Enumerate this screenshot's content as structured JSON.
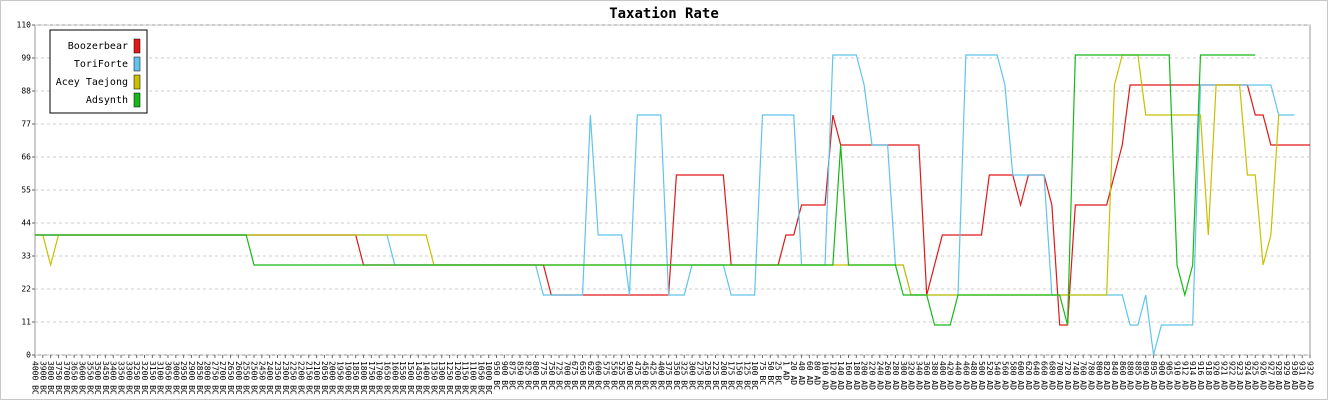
{
  "chart_data": {
    "type": "line",
    "title": "Taxation Rate",
    "categories": [
      "4000 BC",
      "3900 BC",
      "3800 BC",
      "3750 BC",
      "3700 BC",
      "3650 BC",
      "3600 BC",
      "3550 BC",
      "3500 BC",
      "3450 BC",
      "3400 BC",
      "3350 BC",
      "3300 BC",
      "3250 BC",
      "3200 BC",
      "3150 BC",
      "3100 BC",
      "3050 BC",
      "3000 BC",
      "2950 BC",
      "2900 BC",
      "2850 BC",
      "2800 BC",
      "2750 BC",
      "2700 BC",
      "2650 BC",
      "2600 BC",
      "2550 BC",
      "2500 BC",
      "2450 BC",
      "2400 BC",
      "2350 BC",
      "2300 BC",
      "2250 BC",
      "2200 BC",
      "2150 BC",
      "2100 BC",
      "2050 BC",
      "2000 BC",
      "1950 BC",
      "1900 BC",
      "1850 BC",
      "1800 BC",
      "1750 BC",
      "1700 BC",
      "1650 BC",
      "1600 BC",
      "1550 BC",
      "1500 BC",
      "1450 BC",
      "1400 BC",
      "1350 BC",
      "1300 BC",
      "1250 BC",
      "1200 BC",
      "1150 BC",
      "1100 BC",
      "1050 BC",
      "1000 BC",
      "950 BC",
      "900 BC",
      "875 BC",
      "850 BC",
      "825 BC",
      "800 BC",
      "775 BC",
      "750 BC",
      "725 BC",
      "700 BC",
      "675 BC",
      "650 BC",
      "625 BC",
      "600 BC",
      "575 BC",
      "550 BC",
      "525 BC",
      "500 BC",
      "475 BC",
      "450 BC",
      "425 BC",
      "400 BC",
      "375 BC",
      "350 BC",
      "325 BC",
      "300 BC",
      "275 BC",
      "250 BC",
      "225 BC",
      "200 BC",
      "175 BC",
      "150 BC",
      "125 BC",
      "100 BC",
      "75 BC",
      "50 BC",
      "25 BC",
      "1 AD",
      "20 AD",
      "40 AD",
      "60 AD",
      "80 AD",
      "100 AD",
      "120 AD",
      "140 AD",
      "160 AD",
      "180 AD",
      "200 AD",
      "220 AD",
      "240 AD",
      "260 AD",
      "280 AD",
      "300 AD",
      "320 AD",
      "340 AD",
      "360 AD",
      "380 AD",
      "400 AD",
      "420 AD",
      "440 AD",
      "460 AD",
      "480 AD",
      "500 AD",
      "520 AD",
      "540 AD",
      "560 AD",
      "580 AD",
      "600 AD",
      "620 AD",
      "640 AD",
      "660 AD",
      "680 AD",
      "700 AD",
      "720 AD",
      "740 AD",
      "760 AD",
      "780 AD",
      "800 AD",
      "820 AD",
      "840 AD",
      "860 AD",
      "880 AD",
      "885 AD",
      "890 AD",
      "895 AD",
      "900 AD",
      "905 AD",
      "910 AD",
      "912 AD",
      "914 AD",
      "916 AD",
      "918 AD",
      "920 AD",
      "921 AD",
      "922 AD",
      "923 AD",
      "924 AD",
      "925 AD",
      "926 AD",
      "927 AD",
      "928 AD",
      "929 AD",
      "930 AD",
      "931 AD",
      "932 AD"
    ],
    "series": [
      {
        "name": "Boozerbear",
        "color": "#e01818",
        "values": [
          40,
          40,
          40,
          40,
          40,
          40,
          40,
          40,
          40,
          40,
          40,
          40,
          40,
          40,
          40,
          40,
          40,
          40,
          40,
          40,
          40,
          40,
          40,
          40,
          40,
          40,
          40,
          40,
          40,
          40,
          40,
          40,
          40,
          40,
          40,
          40,
          40,
          40,
          40,
          40,
          40,
          40,
          30,
          30,
          30,
          30,
          30,
          30,
          30,
          30,
          30,
          30,
          30,
          30,
          30,
          30,
          30,
          30,
          30,
          30,
          30,
          30,
          30,
          30,
          30,
          30,
          20,
          20,
          20,
          20,
          20,
          20,
          20,
          20,
          20,
          20,
          20,
          20,
          20,
          20,
          20,
          20,
          60,
          60,
          60,
          60,
          60,
          60,
          60,
          30,
          30,
          30,
          30,
          30,
          30,
          30,
          40,
          40,
          50,
          50,
          50,
          50,
          80,
          70,
          70,
          70,
          70,
          70,
          70,
          70,
          70,
          70,
          70,
          70,
          20,
          30,
          40,
          40,
          40,
          40,
          40,
          40,
          60,
          60,
          60,
          60,
          50,
          60,
          60,
          60,
          50,
          10,
          10,
          50,
          50,
          50,
          50,
          50,
          60,
          70,
          90,
          90,
          90,
          90,
          90,
          90,
          90,
          90,
          90,
          90,
          90,
          90,
          90,
          90,
          90,
          90,
          80,
          80,
          70,
          70,
          70,
          70,
          70,
          70
        ]
      },
      {
        "name": "ToriForte",
        "color": "#60c4ec",
        "values": [
          40,
          40,
          40,
          40,
          40,
          40,
          40,
          40,
          40,
          40,
          40,
          40,
          40,
          40,
          40,
          40,
          40,
          40,
          40,
          40,
          40,
          40,
          40,
          40,
          40,
          40,
          40,
          40,
          40,
          40,
          40,
          40,
          40,
          40,
          40,
          40,
          40,
          40,
          40,
          40,
          40,
          40,
          40,
          40,
          40,
          40,
          30,
          30,
          30,
          30,
          30,
          30,
          30,
          30,
          30,
          30,
          30,
          30,
          30,
          30,
          30,
          30,
          30,
          30,
          30,
          20,
          20,
          20,
          20,
          20,
          20,
          80,
          40,
          40,
          40,
          40,
          20,
          80,
          80,
          80,
          80,
          20,
          20,
          20,
          30,
          30,
          30,
          30,
          30,
          20,
          20,
          20,
          20,
          80,
          80,
          80,
          80,
          80,
          30,
          30,
          30,
          30,
          100,
          100,
          100,
          100,
          90,
          70,
          70,
          70,
          30,
          30,
          20,
          20,
          20,
          20,
          20,
          20,
          20,
          100,
          100,
          100,
          100,
          100,
          90,
          60,
          60,
          60,
          60,
          60,
          20,
          20,
          20,
          20,
          20,
          20,
          20,
          20,
          20,
          20,
          10,
          10,
          20,
          0,
          10,
          10,
          10,
          10,
          10,
          90,
          90,
          90,
          90,
          90,
          90,
          90,
          90,
          90,
          90,
          80,
          80,
          80,
          null,
          null
        ]
      },
      {
        "name": "Acey Taejong",
        "color": "#c8c000",
        "values": [
          40,
          40,
          30,
          40,
          40,
          40,
          40,
          40,
          40,
          40,
          40,
          40,
          40,
          40,
          40,
          40,
          40,
          40,
          40,
          40,
          40,
          40,
          40,
          40,
          40,
          40,
          40,
          40,
          40,
          40,
          40,
          40,
          40,
          40,
          40,
          40,
          40,
          40,
          40,
          40,
          40,
          40,
          40,
          40,
          40,
          40,
          40,
          40,
          40,
          40,
          40,
          30,
          30,
          30,
          30,
          30,
          30,
          30,
          30,
          30,
          30,
          30,
          30,
          30,
          30,
          30,
          30,
          30,
          30,
          30,
          30,
          30,
          30,
          30,
          30,
          30,
          30,
          30,
          30,
          30,
          30,
          30,
          30,
          30,
          30,
          30,
          30,
          30,
          30,
          30,
          30,
          30,
          30,
          30,
          30,
          30,
          30,
          30,
          30,
          30,
          30,
          30,
          30,
          30,
          30,
          30,
          30,
          30,
          30,
          30,
          30,
          30,
          20,
          20,
          20,
          20,
          20,
          20,
          20,
          20,
          20,
          20,
          20,
          20,
          20,
          20,
          20,
          20,
          20,
          20,
          20,
          20,
          20,
          20,
          20,
          20,
          20,
          20,
          90,
          100,
          100,
          100,
          80,
          80,
          80,
          80,
          80,
          80,
          80,
          80,
          40,
          90,
          90,
          90,
          90,
          60,
          60,
          30,
          40,
          80,
          null,
          null,
          null,
          null
        ]
      },
      {
        "name": "Adsynth",
        "color": "#18b818",
        "values": [
          40,
          40,
          40,
          40,
          40,
          40,
          40,
          40,
          40,
          40,
          40,
          40,
          40,
          40,
          40,
          40,
          40,
          40,
          40,
          40,
          40,
          40,
          40,
          40,
          40,
          40,
          40,
          40,
          30,
          30,
          30,
          30,
          30,
          30,
          30,
          30,
          30,
          30,
          30,
          30,
          30,
          30,
          30,
          30,
          30,
          30,
          30,
          30,
          30,
          30,
          30,
          30,
          30,
          30,
          30,
          30,
          30,
          30,
          30,
          30,
          30,
          30,
          30,
          30,
          30,
          30,
          30,
          30,
          30,
          30,
          30,
          30,
          30,
          30,
          30,
          30,
          30,
          30,
          30,
          30,
          30,
          30,
          30,
          30,
          30,
          30,
          30,
          30,
          30,
          30,
          30,
          30,
          30,
          30,
          30,
          30,
          30,
          30,
          30,
          30,
          30,
          30,
          30,
          70,
          30,
          30,
          30,
          30,
          30,
          30,
          30,
          20,
          20,
          20,
          20,
          10,
          10,
          10,
          20,
          20,
          20,
          20,
          20,
          20,
          20,
          20,
          20,
          20,
          20,
          20,
          20,
          20,
          10,
          100,
          100,
          100,
          100,
          100,
          100,
          100,
          100,
          100,
          100,
          100,
          100,
          100,
          30,
          20,
          30,
          100,
          100,
          100,
          100,
          100,
          100,
          100,
          100,
          null,
          null,
          null,
          null,
          null,
          null,
          null
        ]
      }
    ],
    "ylim": [
      0,
      110
    ],
    "yticks": [
      0,
      11,
      22,
      33,
      44,
      55,
      66,
      77,
      88,
      99,
      110
    ],
    "grid": true,
    "legend": "top-left"
  }
}
